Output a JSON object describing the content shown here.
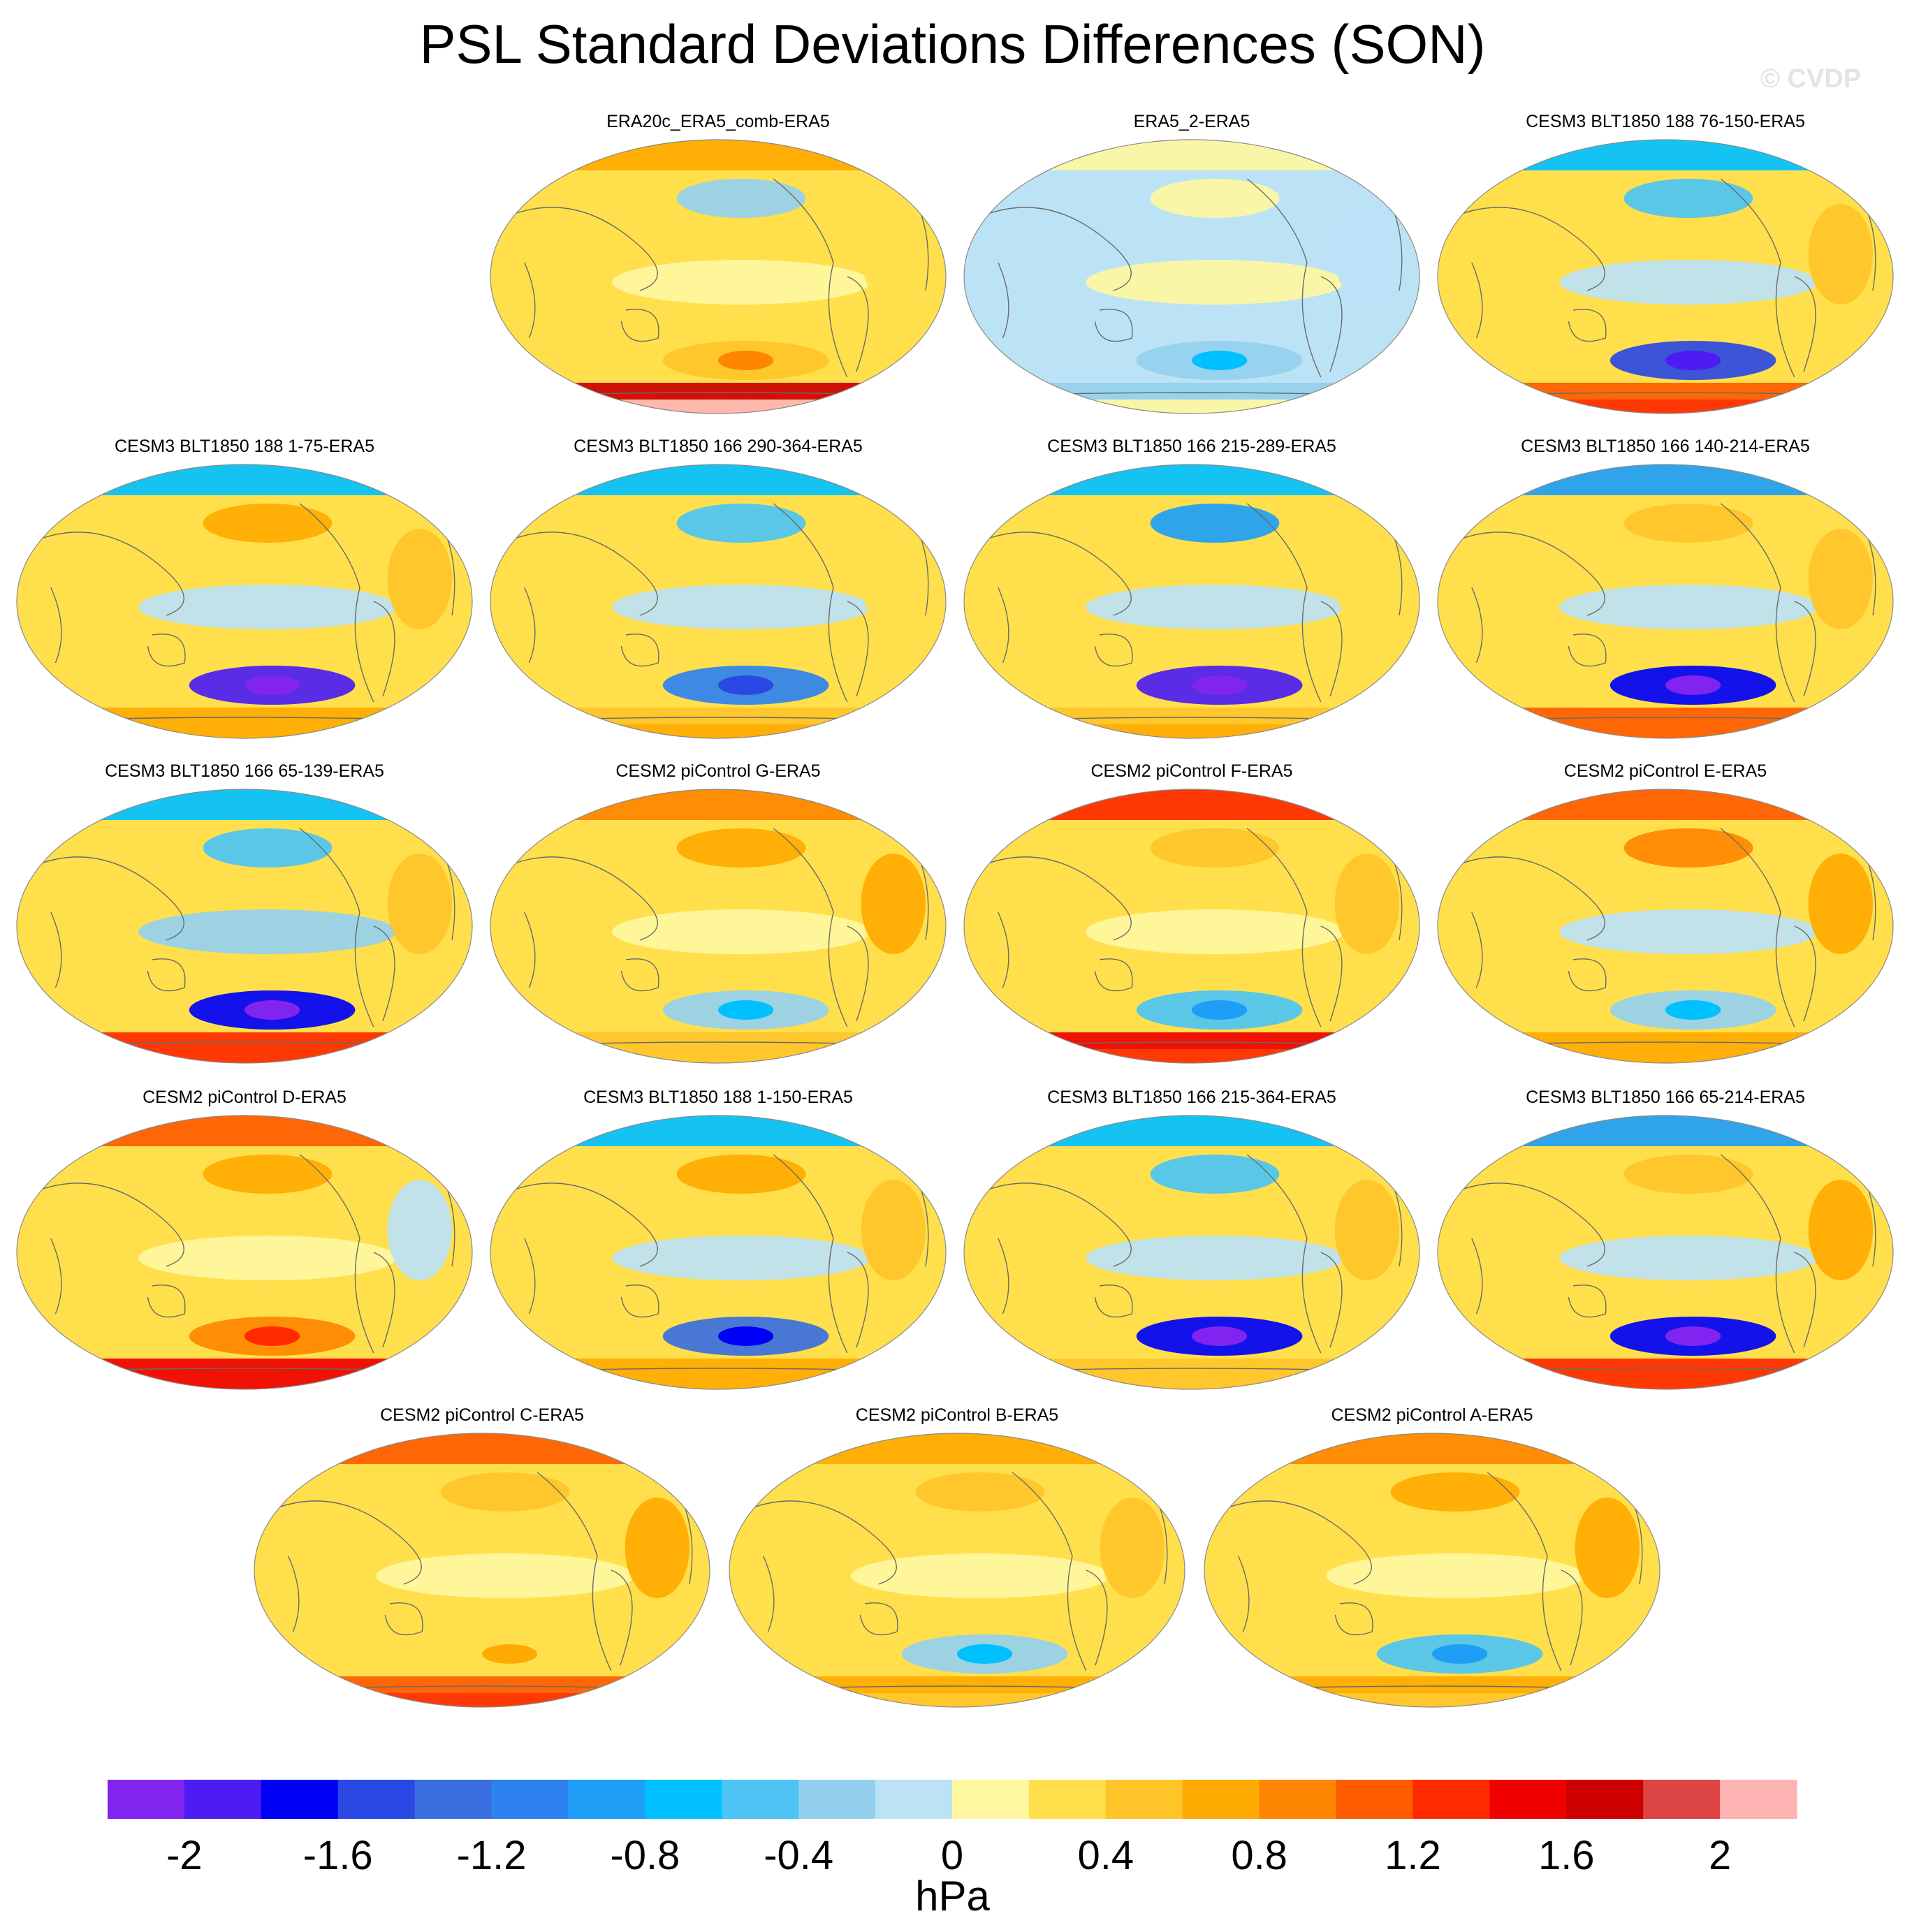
{
  "title": "PSL Standard Deviations Differences (SON)",
  "watermark": "© CVDP",
  "chart_data": {
    "type": "heatmap",
    "variable": "PSL standard deviation difference",
    "season": "SON",
    "projection": "Robinson (Pacific-centered)",
    "units": "hPa",
    "colorbar": {
      "levels": [
        -2.2,
        -2.0,
        -1.8,
        -1.6,
        -1.4,
        -1.2,
        -1.0,
        -0.8,
        -0.6,
        -0.4,
        -0.2,
        0.0,
        0.2,
        0.4,
        0.6,
        0.8,
        1.0,
        1.2,
        1.4,
        1.6,
        1.8,
        2.0,
        2.2
      ],
      "colors": [
        "#8224f0",
        "#4c1cf3",
        "#0000f7",
        "#2a48e4",
        "#3a6ee0",
        "#2e82ef",
        "#1e9ef7",
        "#00c0ff",
        "#4dc4f3",
        "#94d0ee",
        "#bce2f6",
        "#fff7a0",
        "#ffe04c",
        "#ffc428",
        "#ffaa00",
        "#ff8600",
        "#ff5c00",
        "#ff2a00",
        "#f00000",
        "#cc0000",
        "#dd4444",
        "#ffb4b4"
      ],
      "tick_values": [
        -2,
        -1.6,
        -1.2,
        -0.8,
        -0.4,
        0,
        0.4,
        0.8,
        1.2,
        1.6,
        2
      ],
      "tick_labels": [
        "-2",
        "-1.6",
        "-1.2",
        "-0.8",
        "-0.4",
        "0",
        "0.4",
        "0.8",
        "1.2",
        "1.6",
        "2"
      ]
    },
    "panels": [
      {
        "title": "ERA20c_ERA5_comb-ERA5",
        "background": 0.2,
        "southern_ocean": 1.6,
        "antarctica": 2.0,
        "arctic": 0.6,
        "north_pacific": -0.4,
        "tropical_pacific": 0.1,
        "south_pacific": 0.4,
        "atlantic": 0.3
      },
      {
        "title": "ERA5_2-ERA5",
        "background": -0.1,
        "southern_ocean": -0.3,
        "antarctica": 0.0,
        "arctic": 0.0,
        "north_pacific": 0.1,
        "tropical_pacific": 0.1,
        "south_pacific": -0.4,
        "atlantic": -0.1
      },
      {
        "title": "CESM3 BLT1850 188 76-150-ERA5",
        "background": 0.2,
        "southern_ocean": 1.0,
        "antarctica": 1.2,
        "arctic": -0.8,
        "north_pacific": -0.6,
        "tropical_pacific": -0.1,
        "south_pacific": -1.6,
        "atlantic": 0.4
      },
      {
        "title": "CESM3 BLT1850 188 1-75-ERA5",
        "background": 0.2,
        "southern_ocean": 0.6,
        "antarctica": 0.6,
        "arctic": -0.8,
        "north_pacific": 0.6,
        "tropical_pacific": -0.2,
        "south_pacific": -2.0,
        "atlantic": 0.4
      },
      {
        "title": "CESM3 BLT1850 166 290-364-ERA5",
        "background": 0.2,
        "southern_ocean": 0.5,
        "antarctica": 0.6,
        "arctic": -0.8,
        "north_pacific": -0.6,
        "tropical_pacific": -0.2,
        "south_pacific": -1.2,
        "atlantic": 0.3
      },
      {
        "title": "CESM3 BLT1850 166 215-289-ERA5",
        "background": 0.2,
        "southern_ocean": 0.5,
        "antarctica": 0.6,
        "arctic": -0.8,
        "north_pacific": -1.0,
        "tropical_pacific": -0.2,
        "south_pacific": -2.0,
        "atlantic": 0.3
      },
      {
        "title": "CESM3 BLT1850 166 140-214-ERA5",
        "background": 0.2,
        "southern_ocean": 1.0,
        "antarctica": 1.0,
        "arctic": -1.0,
        "north_pacific": 0.4,
        "tropical_pacific": -0.2,
        "south_pacific": -1.8,
        "atlantic": 0.4
      },
      {
        "title": "CESM3 BLT1850 166 65-139-ERA5",
        "background": 0.2,
        "southern_ocean": 1.2,
        "antarctica": 1.2,
        "arctic": -0.8,
        "north_pacific": -0.6,
        "tropical_pacific": -0.3,
        "south_pacific": -1.8,
        "atlantic": 0.4
      },
      {
        "title": "CESM2 piControl G-ERA5",
        "background": 0.3,
        "southern_ocean": 0.4,
        "antarctica": 0.4,
        "arctic": 0.8,
        "north_pacific": 0.6,
        "tropical_pacific": 0.1,
        "south_pacific": -0.4,
        "atlantic": 0.6
      },
      {
        "title": "CESM2 piControl F-ERA5",
        "background": 0.3,
        "southern_ocean": 1.4,
        "antarctica": 1.2,
        "arctic": 1.2,
        "north_pacific": 0.4,
        "tropical_pacific": 0.1,
        "south_pacific": -0.6,
        "atlantic": 0.4
      },
      {
        "title": "CESM2 piControl E-ERA5",
        "background": 0.3,
        "southern_ocean": 0.6,
        "antarctica": 0.6,
        "arctic": 1.0,
        "north_pacific": 0.8,
        "tropical_pacific": -0.1,
        "south_pacific": -0.4,
        "atlantic": 0.6
      },
      {
        "title": "CESM2 piControl D-ERA5",
        "background": 0.3,
        "southern_ocean": 1.4,
        "antarctica": 1.4,
        "arctic": 1.0,
        "north_pacific": 0.6,
        "tropical_pacific": 0.1,
        "south_pacific": 0.8,
        "atlantic": -0.2
      },
      {
        "title": "CESM3 BLT1850 188 1-150-ERA5",
        "background": 0.2,
        "southern_ocean": 0.6,
        "antarctica": 0.6,
        "arctic": -0.8,
        "north_pacific": 0.6,
        "tropical_pacific": -0.2,
        "south_pacific": -1.4,
        "atlantic": 0.4
      },
      {
        "title": "CESM3 BLT1850 166 215-364-ERA5",
        "background": 0.2,
        "southern_ocean": 0.4,
        "antarctica": 0.4,
        "arctic": -0.8,
        "north_pacific": -0.6,
        "tropical_pacific": -0.2,
        "south_pacific": -1.8,
        "atlantic": 0.4
      },
      {
        "title": "CESM3 BLT1850 166 65-214-ERA5",
        "background": 0.2,
        "southern_ocean": 1.2,
        "antarctica": 1.2,
        "arctic": -1.0,
        "north_pacific": 0.4,
        "tropical_pacific": -0.2,
        "south_pacific": -1.8,
        "atlantic": 0.6
      },
      {
        "title": "CESM2 piControl C-ERA5",
        "background": 0.3,
        "southern_ocean": 1.0,
        "antarctica": 1.2,
        "arctic": 1.0,
        "north_pacific": 0.4,
        "tropical_pacific": 0.1,
        "south_pacific": 0.2,
        "atlantic": 0.6
      },
      {
        "title": "CESM2 piControl B-ERA5",
        "background": 0.3,
        "southern_ocean": 0.6,
        "antarctica": 0.4,
        "arctic": 0.6,
        "north_pacific": 0.4,
        "tropical_pacific": 0.1,
        "south_pacific": -0.4,
        "atlantic": 0.4
      },
      {
        "title": "CESM2 piControl A-ERA5",
        "background": 0.3,
        "southern_ocean": 0.6,
        "antarctica": 0.4,
        "arctic": 0.8,
        "north_pacific": 0.6,
        "tropical_pacific": 0.1,
        "south_pacific": -0.6,
        "atlantic": 0.6
      }
    ]
  }
}
